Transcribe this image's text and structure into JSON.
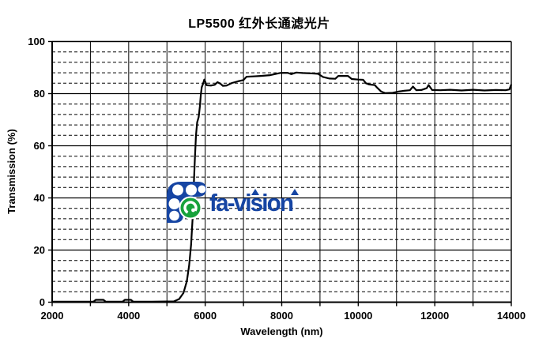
{
  "chart": {
    "watermark_text": "fa-vision",
    "colors": {
      "curve": "#000000",
      "grid": "#000000",
      "watermark_blue": "#1645a3",
      "watermark_green": "#17a23b"
    }
  },
  "chart_data": {
    "type": "line",
    "title": "LP5500 红外长通滤光片",
    "xlabel": "Wavelength (nm)",
    "ylabel": "Transmission (%)",
    "xlim": [
      2000,
      14000
    ],
    "ylim": [
      0,
      100
    ],
    "x_major_ticks": [
      2000,
      4000,
      6000,
      8000,
      10000,
      12000,
      14000
    ],
    "x_minor_step": 1000,
    "y_major_ticks": [
      0,
      20,
      40,
      60,
      80,
      100
    ],
    "y_minor_step": 4,
    "grid": {
      "x": "solid every 1000",
      "y_major": "solid every 20",
      "y_minor": "dashed every 4"
    },
    "legend": "none",
    "series": [
      {
        "name": "transmission",
        "points": [
          [
            2000,
            0.2
          ],
          [
            2600,
            0.2
          ],
          [
            3080,
            0.2
          ],
          [
            3140,
            0.9
          ],
          [
            3340,
            0.9
          ],
          [
            3400,
            0.2
          ],
          [
            3840,
            0.2
          ],
          [
            3900,
            0.9
          ],
          [
            4060,
            0.9
          ],
          [
            4120,
            0.2
          ],
          [
            4600,
            0.2
          ],
          [
            5180,
            0.3
          ],
          [
            5320,
            1.2
          ],
          [
            5430,
            3.5
          ],
          [
            5520,
            8
          ],
          [
            5580,
            14
          ],
          [
            5630,
            22
          ],
          [
            5670,
            32
          ],
          [
            5700,
            44
          ],
          [
            5730,
            55
          ],
          [
            5760,
            64
          ],
          [
            5790,
            69
          ],
          [
            5830,
            71
          ],
          [
            5860,
            75
          ],
          [
            5885,
            79.5
          ],
          [
            5910,
            82.5
          ],
          [
            5950,
            84
          ],
          [
            5975,
            85.4
          ],
          [
            6000,
            84.6
          ],
          [
            6040,
            83.2
          ],
          [
            6150,
            83.1
          ],
          [
            6250,
            83.4
          ],
          [
            6320,
            84.4
          ],
          [
            6400,
            83.8
          ],
          [
            6460,
            83.0
          ],
          [
            6560,
            83.1
          ],
          [
            6700,
            84.1
          ],
          [
            6850,
            84.7
          ],
          [
            7000,
            85.2
          ],
          [
            7080,
            86.5
          ],
          [
            7250,
            86.6
          ],
          [
            7450,
            86.8
          ],
          [
            7700,
            87.1
          ],
          [
            7950,
            87.9
          ],
          [
            8150,
            88.0
          ],
          [
            8250,
            87.5
          ],
          [
            8380,
            88.1
          ],
          [
            8550,
            87.9
          ],
          [
            8750,
            87.8
          ],
          [
            8950,
            87.6
          ],
          [
            9080,
            86.4
          ],
          [
            9250,
            85.8
          ],
          [
            9400,
            85.7
          ],
          [
            9480,
            86.8
          ],
          [
            9730,
            86.8
          ],
          [
            9830,
            85.6
          ],
          [
            10000,
            85.4
          ],
          [
            10130,
            85.3
          ],
          [
            10200,
            84.0
          ],
          [
            10280,
            83.5
          ],
          [
            10430,
            83.3
          ],
          [
            10500,
            82.2
          ],
          [
            10600,
            80.8
          ],
          [
            10700,
            80.2
          ],
          [
            10900,
            80.3
          ],
          [
            11050,
            80.8
          ],
          [
            11200,
            81.1
          ],
          [
            11350,
            81.3
          ],
          [
            11430,
            82.7
          ],
          [
            11520,
            81.3
          ],
          [
            11650,
            81.4
          ],
          [
            11790,
            82.1
          ],
          [
            11840,
            83.3
          ],
          [
            11930,
            81.4
          ],
          [
            12150,
            81.3
          ],
          [
            12400,
            81.5
          ],
          [
            12700,
            81.2
          ],
          [
            13000,
            81.5
          ],
          [
            13300,
            81.2
          ],
          [
            13600,
            81.4
          ],
          [
            13850,
            81.3
          ],
          [
            13950,
            81.6
          ],
          [
            14000,
            83.5
          ]
        ]
      }
    ]
  }
}
